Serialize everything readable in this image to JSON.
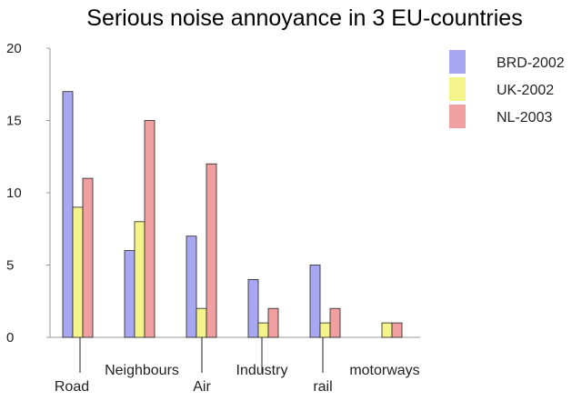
{
  "chart_data": {
    "type": "bar",
    "title": "Serious noise annoyance in 3 EU-countries",
    "xlabel": "",
    "ylabel": "",
    "ylim": [
      0,
      20
    ],
    "yticks": [
      "0",
      "5",
      "10",
      "15",
      "20"
    ],
    "grid": false,
    "legend_position": "right",
    "categories": [
      "Road",
      "Neighbours",
      "Air",
      "Industry",
      "rail",
      "motorways"
    ],
    "series": [
      {
        "name": "BRD-2002",
        "color": "#a7a7f2",
        "values": [
          17,
          6,
          7,
          4,
          5,
          null
        ]
      },
      {
        "name": "UK-2002",
        "color": "#f4f48a",
        "values": [
          9,
          8,
          2,
          1,
          1,
          1
        ]
      },
      {
        "name": "NL-2003",
        "color": "#f0a0a0",
        "values": [
          11,
          15,
          12,
          2,
          2,
          1
        ]
      }
    ]
  }
}
